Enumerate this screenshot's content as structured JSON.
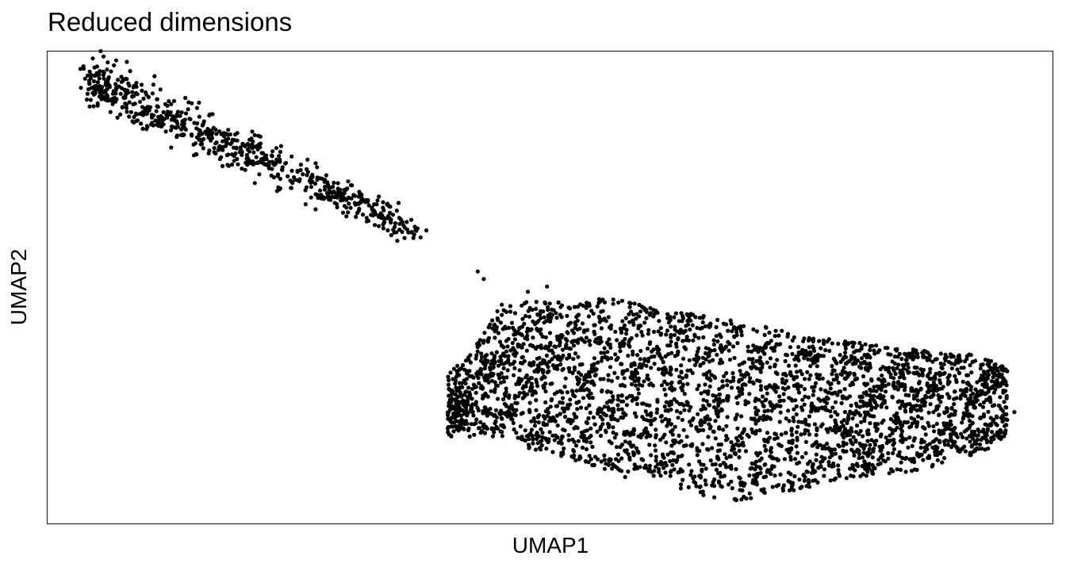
{
  "chart_data": {
    "type": "scatter",
    "title": "Reduced dimensions",
    "xlabel": "UMAP1",
    "ylabel": "UMAP2",
    "xlim": [
      0,
      100
    ],
    "ylim": [
      0,
      100
    ],
    "x_ticks_shown": false,
    "y_ticks_shown": false,
    "grid": false,
    "legend": "none",
    "point_color": "#000000",
    "clusters": [
      {
        "shape": "elongated band",
        "n": 700,
        "x_range": [
          4.2,
          36.5
        ],
        "y_center_at_start": 94.0,
        "y_center_at_end": 62.0,
        "spread": 2.6
      },
      {
        "shape": "broad blob",
        "n": 3600,
        "x_range": [
          39.8,
          95.5
        ],
        "y_range": [
          4.5,
          50.0
        ]
      }
    ],
    "sparse_points": [
      {
        "x": 34.2,
        "y": 61.1
      },
      {
        "x": 36.4,
        "y": 60.5
      },
      {
        "x": 42.8,
        "y": 53.4
      },
      {
        "x": 43.4,
        "y": 51.8
      },
      {
        "x": 47.8,
        "y": 49.1
      },
      {
        "x": 49.7,
        "y": 50.2
      },
      {
        "x": 96.2,
        "y": 23.6
      }
    ],
    "blob_top_boundary": [
      {
        "x": 39.8,
        "y": 31.5
      },
      {
        "x": 42.0,
        "y": 36.0
      },
      {
        "x": 44.0,
        "y": 42.0
      },
      {
        "x": 45.0,
        "y": 46.5
      },
      {
        "x": 48.0,
        "y": 47.5
      },
      {
        "x": 52.0,
        "y": 47.0
      },
      {
        "x": 55.0,
        "y": 48.0
      },
      {
        "x": 58.0,
        "y": 47.0
      },
      {
        "x": 62.0,
        "y": 45.0
      },
      {
        "x": 67.0,
        "y": 43.5
      },
      {
        "x": 71.0,
        "y": 42.0
      },
      {
        "x": 75.0,
        "y": 40.0
      },
      {
        "x": 80.0,
        "y": 38.5
      },
      {
        "x": 85.0,
        "y": 37.0
      },
      {
        "x": 90.0,
        "y": 36.5
      },
      {
        "x": 94.0,
        "y": 35.0
      },
      {
        "x": 95.5,
        "y": 32.5
      }
    ],
    "blob_bottom_boundary": [
      {
        "x": 39.8,
        "y": 18.0
      },
      {
        "x": 43.0,
        "y": 18.5
      },
      {
        "x": 47.0,
        "y": 16.5
      },
      {
        "x": 52.0,
        "y": 13.5
      },
      {
        "x": 57.0,
        "y": 10.0
      },
      {
        "x": 62.0,
        "y": 8.0
      },
      {
        "x": 66.0,
        "y": 5.5
      },
      {
        "x": 69.5,
        "y": 4.5
      },
      {
        "x": 73.0,
        "y": 6.0
      },
      {
        "x": 77.0,
        "y": 8.5
      },
      {
        "x": 81.0,
        "y": 10.0
      },
      {
        "x": 86.0,
        "y": 11.0
      },
      {
        "x": 90.0,
        "y": 13.0
      },
      {
        "x": 94.0,
        "y": 16.0
      },
      {
        "x": 95.5,
        "y": 19.0
      }
    ]
  }
}
